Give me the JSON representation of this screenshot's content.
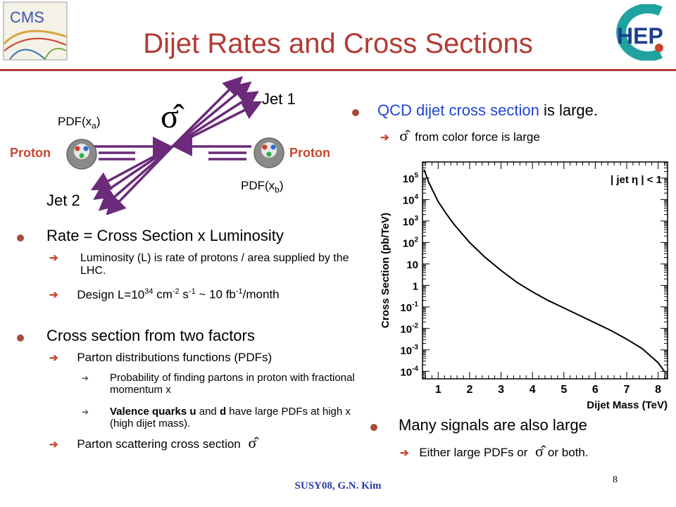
{
  "slide": {
    "title": "Dijet Rates and Cross Sections",
    "page_number": "8",
    "footer": "SUSY08, G.N. Kim",
    "cms_logo_text": "CMS",
    "hep_logo_text": "HEP"
  },
  "diagram": {
    "jet1": "Jet 1",
    "jet2": "Jet 2",
    "proton_left": "Proton",
    "proton_right": "Proton",
    "pdf_a": "PDF(x",
    "pdf_a_sub": "a",
    "pdf_b": "PDF(x",
    "pdf_b_sub": "b",
    "close_paren": ")",
    "sigma_hat": "σ̂"
  },
  "right": {
    "b1_blue": "QCD dijet cross section",
    "b1_rest": " is large.",
    "b1_sub": "from color force is large",
    "b2": "Many signals are also large",
    "b2_sub_pre": "Either large PDFs or",
    "b2_sub_post": "or both."
  },
  "left": {
    "b1": "Rate = Cross Section  x  Luminosity",
    "b1_s1": "Luminosity (L) is rate of protons / area supplied by the LHC.",
    "b1_s2_pre": "Design L=10",
    "b1_s2_exp1": "34",
    "b1_s2_mid1": " cm",
    "b1_s2_exp2": "-2",
    "b1_s2_mid2": " s",
    "b1_s2_exp3": "-1",
    "b1_s2_mid3": " ~ 10 fb",
    "b1_s2_exp4": "-1",
    "b1_s2_post": "/month",
    "b2": "Cross section from two factors",
    "b2_s1": "Parton distributions functions (PDFs)",
    "b2_s1_a": "Probability of finding partons in proton with fractional momentum x",
    "b2_s1_b_pre": "Valence quarks u",
    "b2_s1_b_and": " and ",
    "b2_s1_b_d": "d",
    "b2_s1_b_post": " have large PDFs at high x (high dijet mass).",
    "b2_s2": "Parton scattering cross section"
  },
  "chart_data": {
    "type": "line",
    "xlabel": "Dijet Mass (TeV)",
    "ylabel": "Cross Section (pb/TeV)",
    "annotation": "| jet η | < 1",
    "xlim": [
      0.5,
      8.3
    ],
    "ylim_log10": [
      -4.35,
      5.75
    ],
    "xticks": [
      "1",
      "2",
      "3",
      "4",
      "5",
      "6",
      "7",
      "8"
    ],
    "yticks": [
      {
        "v": 5,
        "base": "10",
        "exp": "5"
      },
      {
        "v": 4,
        "base": "10",
        "exp": "4"
      },
      {
        "v": 3,
        "base": "10",
        "exp": "3"
      },
      {
        "v": 2,
        "base": "10",
        "exp": "2"
      },
      {
        "v": 1,
        "base": "10",
        "exp": ""
      },
      {
        "v": 0,
        "base": "1",
        "exp": ""
      },
      {
        "v": -1,
        "base": "10",
        "exp": "-1"
      },
      {
        "v": -2,
        "base": "10",
        "exp": "-2"
      },
      {
        "v": -3,
        "base": "10",
        "exp": "-3"
      },
      {
        "v": -4,
        "base": "10",
        "exp": "-4"
      }
    ],
    "series": [
      {
        "x": [
          0.55,
          0.7,
          0.85,
          1.0,
          1.25,
          1.5,
          2.0,
          2.5,
          3.0,
          3.5,
          4.0,
          4.5,
          5.0,
          5.5,
          6.0,
          6.5,
          7.0,
          7.5,
          8.0,
          8.2
        ],
        "log10_y": [
          5.4,
          4.8,
          4.35,
          3.9,
          3.35,
          2.85,
          2.0,
          1.3,
          0.7,
          0.15,
          -0.3,
          -0.7,
          -1.05,
          -1.4,
          -1.75,
          -2.1,
          -2.5,
          -2.95,
          -3.6,
          -4.0
        ]
      }
    ]
  }
}
